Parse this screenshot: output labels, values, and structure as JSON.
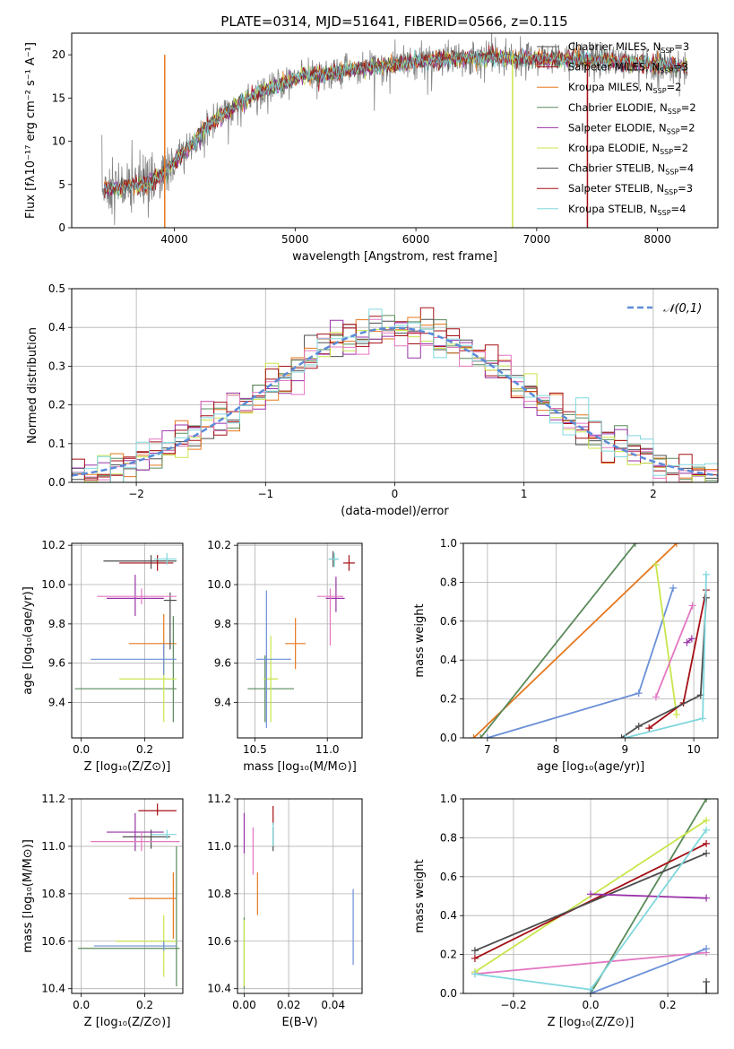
{
  "figure": {
    "title": "PLATE=0314, MJD=51641, FIBERID=0566, z=0.115",
    "colors": [
      "#4d4d4d",
      "#a50f15",
      "#e6781e",
      "#5a8a5a",
      "#9932a8",
      "#c8e64b",
      "#4d4d4d",
      "#a50f15",
      "#80d8dd"
    ],
    "model_colors": {
      "Chabrier MILES": "#4d4d4d",
      "Salpeter MILES": "#a50f15",
      "Kroupa MILES": "#e6781e",
      "Chabrier ELODIE": "#5a8a5a",
      "Salpeter ELODIE": "#9932a8",
      "Kroupa ELODIE": "#c8e64b",
      "Chabrier STELIB": "#4d4d4d",
      "Salpeter STELIB": "#a50f15",
      "Kroupa STELIB": "#80d8dd"
    }
  },
  "chart_data": [
    {
      "id": "spectrum",
      "type": "line",
      "xlabel": "wavelength [Angstrom, rest frame]",
      "ylabel": "Flux [fλ10⁻¹⁷ erg cm⁻² s⁻¹ A⁻¹]",
      "xlim": [
        3150,
        8500
      ],
      "ylim": [
        0,
        22.5
      ],
      "xticks": [
        4000,
        5000,
        6000,
        7000,
        8000
      ],
      "yticks": [
        0,
        5,
        10,
        15,
        20
      ],
      "grid": false,
      "legend_position": "right",
      "continuum_anchors": {
        "x": [
          3400,
          3550,
          3700,
          3850,
          4000,
          4150,
          4300,
          4500,
          4700,
          4900,
          5100,
          5300,
          5500,
          5800,
          6100,
          6400,
          6700,
          7000,
          7300,
          7600,
          7900,
          8250
        ],
        "y": [
          4.5,
          4.6,
          5.0,
          5.6,
          7.5,
          9.8,
          12.0,
          14.0,
          15.6,
          16.8,
          17.6,
          17.9,
          18.3,
          18.8,
          19.4,
          19.6,
          19.6,
          19.5,
          19.6,
          19.3,
          19.0,
          18.6
        ]
      },
      "series": [
        {
          "name": "Chabrier MILES",
          "nssp": "3"
        },
        {
          "name": "Salpeter MILES",
          "nssp": "3"
        },
        {
          "name": "Kroupa MILES",
          "nssp": "2"
        },
        {
          "name": "Chabrier ELODIE",
          "nssp": "2"
        },
        {
          "name": "Salpeter ELODIE",
          "nssp": "2"
        },
        {
          "name": "Kroupa ELODIE",
          "nssp": "2"
        },
        {
          "name": "Chabrier STELIB",
          "nssp": "4"
        },
        {
          "name": "Salpeter STELIB",
          "nssp": "3"
        },
        {
          "name": "Kroupa STELIB",
          "nssp": "4"
        }
      ]
    },
    {
      "id": "residuals",
      "type": "histogram",
      "xlabel": "(data-model)/error",
      "ylabel": "Normed distribution",
      "xlim": [
        -2.5,
        2.5
      ],
      "ylim": [
        0,
        0.5
      ],
      "xticks": [
        -2,
        -1,
        0,
        1,
        2
      ],
      "yticks": [
        0.0,
        0.1,
        0.2,
        0.3,
        0.4,
        0.5
      ],
      "grid": true,
      "legend": "𝒩(0,1)",
      "legend_position": "top-right",
      "bin_width": 0.1
    },
    {
      "id": "age_vs_Z",
      "type": "errorbar",
      "xlabel": "Z [log₁₀(Z/Z⊙)]",
      "ylabel": "age  [log₁₀(age/yr)]",
      "xlim": [
        -0.03,
        0.32
      ],
      "ylim": [
        9.22,
        10.21
      ],
      "xticks": [
        0.0,
        0.2
      ],
      "yticks": [
        9.4,
        9.6,
        9.8,
        10.0,
        10.2
      ],
      "grid": true,
      "points": [
        {
          "x": 0.22,
          "y": 10.12,
          "xerr": [
            0.15,
            0.08
          ],
          "yerr": [
            0.04,
            0.03
          ],
          "color": "#4d4d4d"
        },
        {
          "x": 0.24,
          "y": 10.11,
          "xerr": [
            0.12,
            0.05
          ],
          "yerr": [
            0.04,
            0.04
          ],
          "color": "#a50f15"
        },
        {
          "x": 0.26,
          "y": 9.7,
          "xerr": [
            0.11,
            0.04
          ],
          "yerr": [
            0.15,
            0.15
          ],
          "color": "#e6781e"
        },
        {
          "x": 0.29,
          "y": 9.47,
          "xerr": [
            0.31,
            0.01
          ],
          "yerr": [
            0.17,
            0.37
          ],
          "color": "#5a8a5a"
        },
        {
          "x": 0.17,
          "y": 9.93,
          "xerr": [
            0.09,
            0.09
          ],
          "yerr": [
            0.09,
            0.12
          ],
          "color": "#9932a8"
        },
        {
          "x": 0.26,
          "y": 9.52,
          "xerr": [
            0.14,
            0.04
          ],
          "yerr": [
            0.22,
            0.12
          ],
          "color": "#c8e64b"
        },
        {
          "x": 0.28,
          "y": 9.92,
          "xerr": [
            0.02,
            0.02
          ],
          "yerr": [
            0.25,
            0.04
          ],
          "color": "#4d4d4d"
        },
        {
          "x": 0.19,
          "y": 9.94,
          "xerr": [
            0.14,
            0.11
          ],
          "yerr": [
            0.04,
            0.04
          ],
          "color": "#e377c2"
        },
        {
          "x": 0.26,
          "y": 9.62,
          "xerr": [
            0.23,
            0.04
          ],
          "yerr": [
            0.08,
            0.08
          ],
          "color": "#6a8fd8"
        },
        {
          "x": 0.27,
          "y": 10.13,
          "xerr": [
            0.04,
            0.03
          ],
          "yerr": [
            0.03,
            0.03
          ],
          "color": "#80d8dd"
        }
      ]
    },
    {
      "id": "age_vs_mass",
      "type": "errorbar",
      "xlabel": "mass [log₁₀(M/M⊙)]",
      "ylabel": "",
      "xlim": [
        10.38,
        11.24
      ],
      "ylim": [
        9.22,
        10.21
      ],
      "xticks": [
        10.5,
        11.0
      ],
      "yticks": [
        9.4,
        9.6,
        9.8,
        10.0,
        10.2
      ],
      "grid": true,
      "points": [
        {
          "x": 11.04,
          "y": 10.13,
          "xerr": [
            0.03,
            0.03
          ],
          "yerr": [
            0.04,
            0.04
          ],
          "color": "#4d4d4d"
        },
        {
          "x": 11.15,
          "y": 10.11,
          "xerr": [
            0.04,
            0.04
          ],
          "yerr": [
            0.04,
            0.04
          ],
          "color": "#a50f15"
        },
        {
          "x": 10.78,
          "y": 9.7,
          "xerr": [
            0.07,
            0.07
          ],
          "yerr": [
            0.13,
            0.13
          ],
          "color": "#e6781e"
        },
        {
          "x": 10.57,
          "y": 9.47,
          "xerr": [
            0.12,
            0.2
          ],
          "yerr": [
            0.17,
            0.17
          ],
          "color": "#5a8a5a"
        },
        {
          "x": 11.06,
          "y": 9.93,
          "xerr": [
            0.07,
            0.06
          ],
          "yerr": [
            0.07,
            0.11
          ],
          "color": "#9932a8"
        },
        {
          "x": 10.61,
          "y": 9.52,
          "xerr": [
            0.05,
            0.05
          ],
          "yerr": [
            0.22,
            0.22
          ],
          "color": "#c8e64b"
        },
        {
          "x": 10.58,
          "y": 9.62,
          "xerr": [
            0.07,
            0.17
          ],
          "yerr": [
            0.35,
            0.35
          ],
          "color": "#6a8fd8"
        },
        {
          "x": 11.02,
          "y": 9.94,
          "xerr": [
            0.09,
            0.09
          ],
          "yerr": [
            0.25,
            0.04
          ],
          "color": "#e377c2"
        },
        {
          "x": 11.05,
          "y": 10.13,
          "xerr": [
            0.04,
            0.03
          ],
          "yerr": [
            0.04,
            0.03
          ],
          "color": "#80d8dd"
        }
      ]
    },
    {
      "id": "mass_weight_vs_age",
      "type": "line",
      "xlabel": "age  [log₁₀(age/yr)]",
      "ylabel": "mass weight",
      "xlim": [
        6.65,
        10.35
      ],
      "ylim": [
        0,
        1.0
      ],
      "xticks": [
        7,
        8,
        9,
        10
      ],
      "yticks": [
        0.0,
        0.2,
        0.4,
        0.6,
        0.8,
        1.0
      ],
      "grid": true,
      "series": [
        {
          "color": "#e6781e",
          "x": [
            6.8,
            9.75
          ],
          "y": [
            0.0,
            1.0
          ]
        },
        {
          "color": "#5a8a5a",
          "x": [
            6.9,
            9.15
          ],
          "y": [
            0.0,
            1.0
          ]
        },
        {
          "color": "#6a8fd8",
          "x": [
            7.0,
            9.2,
            9.7
          ],
          "y": [
            0.0,
            0.23,
            0.77
          ]
        },
        {
          "color": "#c8e64b",
          "x": [
            9.45,
            9.75
          ],
          "y": [
            0.89,
            0.12
          ]
        },
        {
          "color": "#e377c2",
          "x": [
            9.45,
            9.98
          ],
          "y": [
            0.21,
            0.68
          ]
        },
        {
          "color": "#9932a8",
          "x": [
            9.9,
            9.97
          ],
          "y": [
            0.49,
            0.51
          ]
        },
        {
          "color": "#a50f15",
          "x": [
            9.35,
            9.85,
            10.18
          ],
          "y": [
            0.05,
            0.18,
            0.76
          ]
        },
        {
          "color": "#4d4d4d",
          "x": [
            8.95,
            9.2,
            10.1,
            10.18
          ],
          "y": [
            0.0,
            0.06,
            0.22,
            0.72
          ]
        },
        {
          "color": "#80d8dd",
          "x": [
            9.0,
            10.13,
            10.18
          ],
          "y": [
            0.0,
            0.1,
            0.84
          ]
        }
      ]
    },
    {
      "id": "mass_vs_Z",
      "type": "errorbar",
      "xlabel": "Z [log₁₀(Z/Z⊙)]",
      "ylabel": "mass [log₁₀(M/M⊙)]",
      "xlim": [
        -0.03,
        0.32
      ],
      "ylim": [
        10.38,
        11.2
      ],
      "xticks": [
        0.0,
        0.2
      ],
      "yticks": [
        10.4,
        10.6,
        10.8,
        11.0,
        11.2
      ],
      "grid": true,
      "points": [
        {
          "x": 0.22,
          "y": 11.04,
          "xerr": [
            0.09,
            0.06
          ],
          "yerr": [
            0.05,
            0.03
          ],
          "color": "#4d4d4d"
        },
        {
          "x": 0.24,
          "y": 11.15,
          "xerr": [
            0.06,
            0.06
          ],
          "yerr": [
            0.02,
            0.03
          ],
          "color": "#a50f15"
        },
        {
          "x": 0.29,
          "y": 10.78,
          "xerr": [
            0.14,
            0.01
          ],
          "yerr": [
            0.17,
            0.11
          ],
          "color": "#e6781e"
        },
        {
          "x": 0.3,
          "y": 10.57,
          "xerr": [
            0.31,
            0.01
          ],
          "yerr": [
            0.16,
            0.43
          ],
          "color": "#5a8a5a"
        },
        {
          "x": 0.17,
          "y": 11.06,
          "xerr": [
            0.09,
            0.09
          ],
          "yerr": [
            0.08,
            0.08
          ],
          "color": "#9932a8"
        },
        {
          "x": 0.26,
          "y": 10.6,
          "xerr": [
            0.15,
            0.04
          ],
          "yerr": [
            0.15,
            0.11
          ],
          "color": "#c8e64b"
        },
        {
          "x": 0.19,
          "y": 11.02,
          "xerr": [
            0.16,
            0.12
          ],
          "yerr": [
            0.04,
            0.04
          ],
          "color": "#e377c2"
        },
        {
          "x": 0.26,
          "y": 10.58,
          "xerr": [
            0.22,
            0.04
          ],
          "yerr": [
            0.02,
            0.02
          ],
          "color": "#6a8fd8"
        },
        {
          "x": 0.27,
          "y": 11.05,
          "xerr": [
            0.05,
            0.03
          ],
          "yerr": [
            0.02,
            0.02
          ],
          "color": "#80d8dd"
        }
      ]
    },
    {
      "id": "mass_vs_ebv",
      "type": "errorbar",
      "xlabel": "E(B-V)",
      "ylabel": "",
      "xlim": [
        -0.003,
        0.053
      ],
      "ylim": [
        10.38,
        11.2
      ],
      "xticks": [
        0.0,
        0.02,
        0.04
      ],
      "yticks": [
        10.4,
        10.6,
        10.8,
        11.0,
        11.2
      ],
      "grid": true,
      "points": [
        {
          "x": 0.013,
          "y": 11.04,
          "xerr": [
            0,
            0
          ],
          "yerr": [
            0.06,
            0.04
          ],
          "color": "#4d4d4d"
        },
        {
          "x": 0.013,
          "y": 11.14,
          "xerr": [
            0,
            0
          ],
          "yerr": [
            0.05,
            0.03
          ],
          "color": "#a50f15"
        },
        {
          "x": 0.006,
          "y": 10.78,
          "xerr": [
            0,
            0
          ],
          "yerr": [
            0.07,
            0.11
          ],
          "color": "#e6781e"
        },
        {
          "x": 0.0,
          "y": 10.55,
          "xerr": [
            0,
            0
          ],
          "yerr": [
            0.15,
            0.15
          ],
          "color": "#5a8a5a"
        },
        {
          "x": 0.0,
          "y": 11.05,
          "xerr": [
            0,
            0
          ],
          "yerr": [
            0.08,
            0.09
          ],
          "color": "#9932a8"
        },
        {
          "x": 0.0,
          "y": 10.55,
          "xerr": [
            0,
            0
          ],
          "yerr": [
            0.14,
            0.14
          ],
          "color": "#c8e64b"
        },
        {
          "x": 0.004,
          "y": 10.98,
          "xerr": [
            0,
            0
          ],
          "yerr": [
            0.1,
            0.1
          ],
          "color": "#e377c2"
        },
        {
          "x": 0.049,
          "y": 10.66,
          "xerr": [
            0,
            0
          ],
          "yerr": [
            0.16,
            0.16
          ],
          "color": "#6a8fd8"
        },
        {
          "x": 0.013,
          "y": 11.05,
          "xerr": [
            0,
            0
          ],
          "yerr": [
            0.05,
            0.05
          ],
          "color": "#80d8dd"
        }
      ]
    },
    {
      "id": "mass_weight_vs_Z",
      "type": "line",
      "xlabel": "Z [log₁₀(Z/Z⊙)]",
      "ylabel": "mass weight",
      "xlim": [
        -0.33,
        0.33
      ],
      "ylim": [
        0,
        1.0
      ],
      "xticks": [
        -0.2,
        0.0,
        0.2
      ],
      "yticks": [
        0.0,
        0.2,
        0.4,
        0.6,
        0.8,
        1.0
      ],
      "grid": true,
      "series": [
        {
          "color": "#5a8a5a",
          "x": [
            0.0,
            0.3
          ],
          "y": [
            0.0,
            1.0
          ]
        },
        {
          "color": "#c8e64b",
          "x": [
            -0.3,
            0.3
          ],
          "y": [
            0.11,
            0.89
          ]
        },
        {
          "color": "#a50f15",
          "x": [
            -0.3,
            0.3
          ],
          "y": [
            0.18,
            0.77
          ]
        },
        {
          "color": "#4d4d4d",
          "x": [
            -0.3,
            0.3
          ],
          "y": [
            0.22,
            0.72
          ]
        },
        {
          "color": "#9932a8",
          "x": [
            0.0,
            0.3
          ],
          "y": [
            0.51,
            0.49
          ]
        },
        {
          "color": "#e377c2",
          "x": [
            -0.3,
            0.3
          ],
          "y": [
            0.1,
            0.21
          ]
        },
        {
          "color": "#80d8dd",
          "x": [
            -0.3,
            0.0,
            0.3
          ],
          "y": [
            0.1,
            0.02,
            0.84
          ]
        },
        {
          "color": "#6a8fd8",
          "x": [
            0.0,
            0.3
          ],
          "y": [
            0.0,
            0.23
          ]
        },
        {
          "color": "#4d4d4d",
          "x": [
            0.3,
            0.3
          ],
          "y": [
            0.0,
            0.06
          ]
        }
      ]
    }
  ]
}
